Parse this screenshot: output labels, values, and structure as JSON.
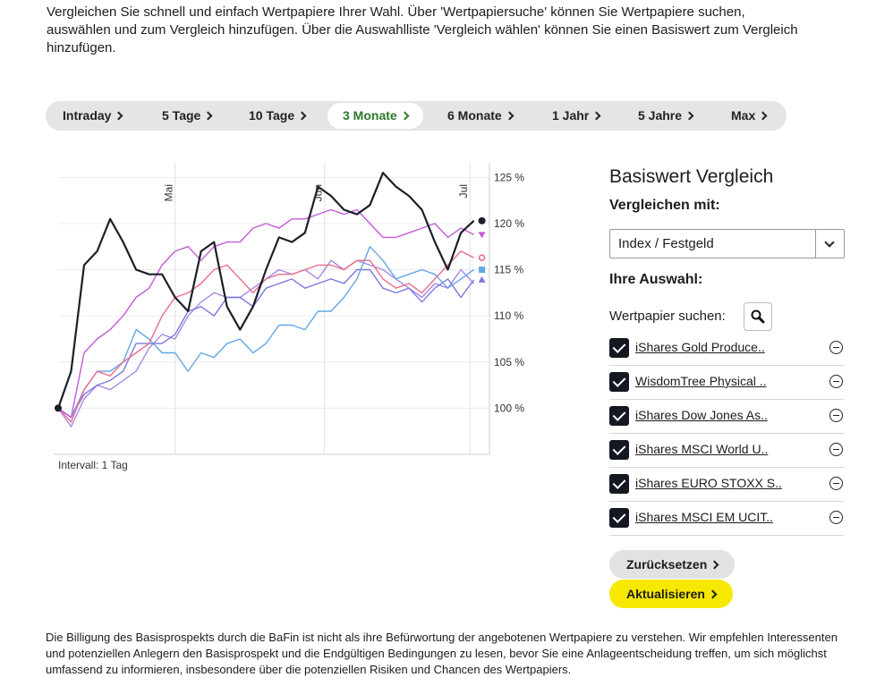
{
  "intro": "Vergleichen Sie schnell und einfach Wertpapiere Ihrer Wahl. Über 'Wertpapiersuche' können Sie Wertpapiere suchen, auswählen und zum Vergleich hinzufügen. Über die Auswahlliste 'Vergleich wählen' können Sie einen Basiswert zum Vergleich hinzufügen.",
  "tabs": [
    "Intraday",
    "5 Tage",
    "10 Tage",
    "3 Monate",
    "6 Monate",
    "1 Jahr",
    "5 Jahre",
    "Max"
  ],
  "active_tab": 3,
  "chart_data": {
    "type": "line",
    "ylim": [
      95,
      126
    ],
    "yticks": [
      {
        "value": 100,
        "label": "100 %"
      },
      {
        "value": 105,
        "label": "105 %"
      },
      {
        "value": 110,
        "label": "110 %"
      },
      {
        "value": 115,
        "label": "115 %"
      },
      {
        "value": 120,
        "label": "120 %"
      },
      {
        "value": 125,
        "label": "125 %"
      }
    ],
    "xlim": [
      0,
      33.2
    ],
    "xticks": [
      {
        "value": 9,
        "label": "Mai"
      },
      {
        "value": 20.5,
        "label": "Jun"
      },
      {
        "value": 31.7,
        "label": "Jul"
      }
    ],
    "grid": true,
    "series": [
      {
        "color": "#1b1f2a",
        "marker": "circle-filled",
        "values": [
          100,
          104,
          115.5,
          117,
          120.5,
          118,
          115,
          114.5,
          114.5,
          112,
          110.5,
          117,
          118,
          111,
          108.5,
          111,
          115,
          118.5,
          118,
          119,
          124,
          123,
          121.5,
          121,
          122,
          125.5,
          124,
          123,
          121.5,
          118,
          115,
          119,
          120.3
        ]
      },
      {
        "color": "#c45ad6",
        "marker": "triangle-down",
        "values": [
          100,
          99,
          106,
          107.5,
          108.5,
          110,
          112,
          113,
          115.5,
          117,
          117.5,
          116,
          117.5,
          118,
          118,
          119.5,
          120,
          119.5,
          120.5,
          120.5,
          121,
          121.5,
          121,
          121.5,
          120,
          118.5,
          118.5,
          119,
          119.5,
          120,
          118.5,
          119.5,
          118.8
        ]
      },
      {
        "color": "#ea6d8c",
        "marker": "circle-open",
        "values": [
          100,
          98.5,
          102,
          104,
          103.5,
          105,
          106,
          107,
          110,
          112,
          112.5,
          113.5,
          115,
          115.5,
          114,
          112.5,
          114,
          114.5,
          114.5,
          115,
          115.5,
          115.5,
          115,
          116,
          116,
          114,
          113,
          113.5,
          112.5,
          114,
          115.5,
          117,
          116.3
        ]
      },
      {
        "color": "#62a6e6",
        "marker": "square",
        "values": [
          100,
          99,
          102,
          104,
          104,
          105,
          108.5,
          107.5,
          106,
          106,
          104,
          106,
          105.5,
          107,
          107.5,
          106,
          107,
          109,
          109,
          108.5,
          110.5,
          110.5,
          112,
          114,
          117.5,
          116,
          114,
          114.5,
          115,
          114.5,
          113,
          114,
          115
        ]
      },
      {
        "color": "#7b78de",
        "marker": "triangle-up",
        "values": [
          100,
          99,
          101.5,
          102.5,
          103,
          104,
          107,
          107,
          107,
          108,
          110.5,
          111,
          110,
          112,
          112,
          111,
          113,
          113.5,
          114,
          113,
          113.5,
          114,
          113.5,
          115,
          115,
          113,
          112.5,
          113,
          111.5,
          113,
          114,
          112,
          113.9
        ]
      },
      {
        "color": "#a988e6",
        "values": [
          100,
          98,
          101,
          102.5,
          102,
          103,
          104,
          106.5,
          108,
          107.5,
          110,
          111.5,
          112.5,
          112,
          112,
          113,
          114,
          115,
          114.5,
          115,
          114,
          116,
          115,
          116,
          115.5,
          115,
          114,
          113,
          112,
          113.5,
          113,
          115,
          113.5
        ]
      }
    ]
  },
  "interval_note": "Intervall: 1 Tag",
  "panel": {
    "title": "Basiswert Vergleich",
    "compare_label": "Vergleichen mit:",
    "compare_select": "Index / Festgeld",
    "selection_label": "Ihre Auswahl:",
    "search_label": "Wertpapier suchen:",
    "selections": [
      {
        "name": "iShares Gold Produce..",
        "checked": true
      },
      {
        "name": "WisdomTree Physical ..",
        "checked": true
      },
      {
        "name": "iShares Dow Jones As..",
        "checked": true
      },
      {
        "name": "iShares MSCI World U..",
        "checked": true
      },
      {
        "name": "iShares EURO STOXX S..",
        "checked": true
      },
      {
        "name": "iShares MSCI EM UCIT..",
        "checked": true
      }
    ],
    "reset": "Zurücksetzen",
    "update": "Aktualisieren"
  },
  "disclaimer": "Die Billigung des Basisprospekts durch die BaFin ist nicht als ihre Befürwortung der angebotenen Wertpapiere zu verstehen. Wir empfehlen Interessenten und potenziellen Anlegern den Basisprospekt und die Endgültigen Bedingungen zu lesen, bevor Sie eine Anlageentscheidung treffen, um sich möglichst umfassend zu informieren, insbesondere über die potenziellen Risiken und Chancen des Wertpapiers."
}
